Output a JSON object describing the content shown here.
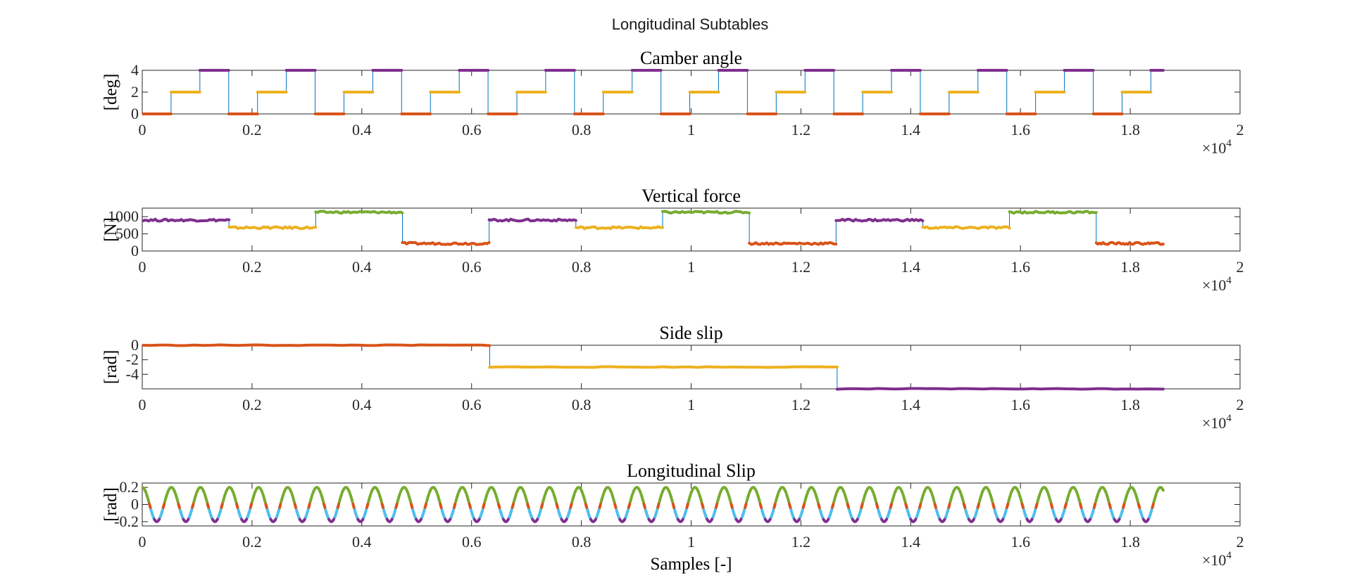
{
  "figure": {
    "title": "Longitudinal Subtables",
    "xlabel": "Samples [-]"
  },
  "colors": {
    "connector": "#0072BD",
    "red": "#D95319",
    "yellow": "#EDB120",
    "purple": "#7E2F8E",
    "green": "#77AC30",
    "cyan": "#4DBEEE"
  },
  "chart_data": [
    {
      "type": "line",
      "title": "Camber angle",
      "ylabel": "[deg]",
      "xlabel": "",
      "xlim": [
        0,
        20000
      ],
      "ylim": [
        0,
        4
      ],
      "x_ticks": [
        "0",
        "0.2",
        "0.4",
        "0.6",
        "0.8",
        "1",
        "1.2",
        "1.4",
        "1.6",
        "1.8",
        "2"
      ],
      "y_ticks": [
        "0",
        "2",
        "4"
      ],
      "x_exponent": "4",
      "grid": false,
      "connector_series": "Camber angle",
      "segment_length": 525,
      "segment_values": [
        0,
        2,
        4,
        0,
        2,
        4,
        0,
        2,
        4,
        0,
        2,
        4,
        0,
        2,
        4,
        0,
        2,
        4,
        0,
        2,
        4,
        0,
        2,
        4,
        0,
        2,
        4,
        0,
        2,
        4,
        0,
        2,
        4,
        0,
        2,
        4
      ],
      "segment_colors": [
        "red",
        "yellow",
        "purple"
      ],
      "x_end": 18600
    },
    {
      "type": "line",
      "title": "Vertical force",
      "ylabel": "[N]",
      "xlabel": "",
      "xlim": [
        0,
        20000
      ],
      "ylim": [
        0,
        1250
      ],
      "x_ticks": [
        "0",
        "0.2",
        "0.4",
        "0.6",
        "0.8",
        "1",
        "1.2",
        "1.4",
        "1.6",
        "1.8",
        "2"
      ],
      "y_ticks": [
        "0",
        "500",
        "1000"
      ],
      "x_exponent": "4",
      "grid": false,
      "segment_length": 1580,
      "segment_values": [
        900,
        680,
        1130,
        220,
        900,
        680,
        1130,
        220,
        900,
        680,
        1130,
        220
      ],
      "segment_colors": [
        "purple",
        "yellow",
        "green",
        "red"
      ],
      "x_end": 18600
    },
    {
      "type": "line",
      "title": "Side slip",
      "ylabel": "[rad]",
      "xlabel": "",
      "xlim": [
        0,
        20000
      ],
      "ylim": [
        -6,
        0
      ],
      "x_ticks": [
        "0",
        "0.2",
        "0.4",
        "0.6",
        "0.8",
        "1",
        "1.2",
        "1.4",
        "1.6",
        "1.8",
        "2"
      ],
      "y_ticks": [
        "-4",
        "-2",
        "0"
      ],
      "x_exponent": "4",
      "grid": false,
      "segment_length": 6330,
      "segment_values": [
        0,
        -3,
        -6
      ],
      "segment_colors": [
        "red",
        "yellow",
        "purple"
      ],
      "x_end": 18600
    },
    {
      "type": "line",
      "title": "Longitudinal Slip",
      "ylabel": "[rad]",
      "xlabel": "Samples [-]",
      "xlim": [
        0,
        20000
      ],
      "ylim": [
        -0.25,
        0.25
      ],
      "x_ticks": [
        "0",
        "0.2",
        "0.4",
        "0.6",
        "0.8",
        "1",
        "1.2",
        "1.4",
        "1.6",
        "1.8",
        "2"
      ],
      "y_ticks": [
        "-0.2",
        "0",
        "0.2"
      ],
      "x_exponent": "4",
      "grid": false,
      "wave": {
        "amplitude": 0.2,
        "period": 530,
        "phase_start": 0.2,
        "x_end": 18600
      },
      "color_bands": [
        {
          "range": [
            0.12,
            0.25
          ],
          "color": "green"
        },
        {
          "range": [
            0.02,
            0.12
          ],
          "color": "green"
        },
        {
          "range": [
            -0.06,
            0.02
          ],
          "color": "red"
        },
        {
          "range": [
            -0.16,
            -0.06
          ],
          "color": "cyan"
        },
        {
          "range": [
            -0.25,
            -0.16
          ],
          "color": "purple"
        }
      ]
    }
  ]
}
